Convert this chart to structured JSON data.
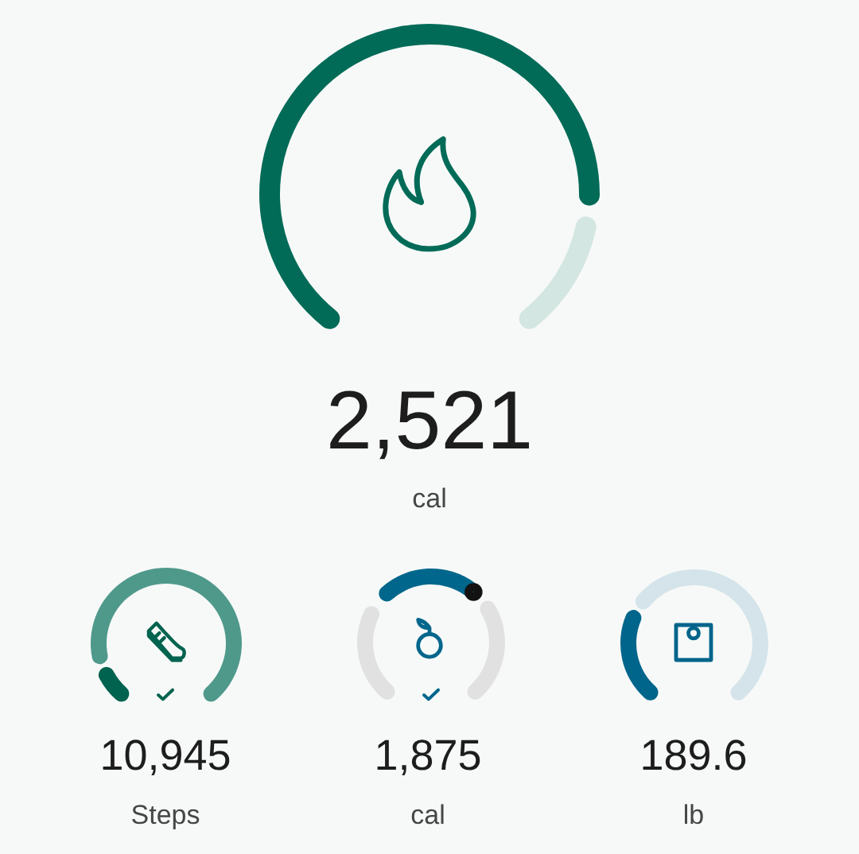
{
  "chart_data": [
    {
      "type": "donut",
      "categories": [
        null,
        null
      ],
      "values": [
        84,
        16
      ],
      "colors": [
        "#016b58",
        "#d3e6e1"
      ],
      "annotations": [
        "2,521",
        "cal"
      ]
    },
    {
      "type": "donut",
      "categories": [
        null,
        null
      ],
      "values": [
        11,
        89
      ],
      "colors": [
        "#00634f",
        "#4f998b"
      ],
      "annotations": [
        "10,945",
        "Steps"
      ]
    },
    {
      "type": "donut",
      "categories": [
        null,
        null,
        null
      ],
      "values": [
        32,
        34,
        34
      ],
      "colors": [
        "#e0e1e0",
        "#00668c",
        "#e0e1e0"
      ],
      "annotations": [
        "1,875",
        "cal"
      ]
    },
    {
      "type": "donut",
      "categories": [
        null,
        null
      ],
      "values": [
        29,
        71
      ],
      "colors": [
        "#00658b",
        "#d4e4ea"
      ],
      "annotations": [
        "189.6",
        "lb"
      ]
    }
  ]
}
